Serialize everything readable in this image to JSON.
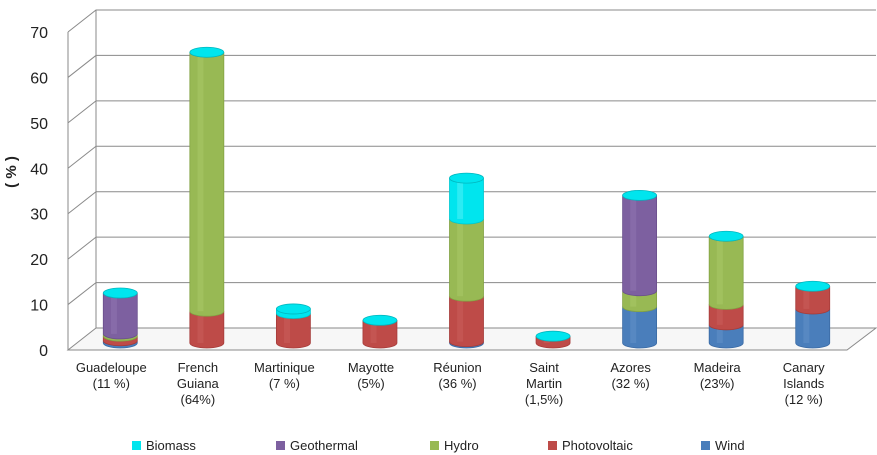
{
  "chart_data": {
    "type": "bar",
    "stacked": true,
    "three_d": true,
    "ylabel": "( % )",
    "ylim": [
      0,
      70
    ],
    "yticks": [
      "0",
      "10",
      "20",
      "30",
      "40",
      "50",
      "60",
      "70"
    ],
    "grid": true,
    "legend_position": "bottom",
    "categories": [
      [
        "Guadeloupe",
        "(11 %)"
      ],
      [
        "French",
        "Guiana",
        "(64%)"
      ],
      [
        "Martinique",
        "(7 %)"
      ],
      [
        "Mayotte",
        "(5%)"
      ],
      [
        "Réunion",
        "(36 %)"
      ],
      [
        "Saint",
        "Martin",
        "(1,5%)"
      ],
      [
        "Azores",
        "(32 %)"
      ],
      [
        "Madeira",
        "(23%)"
      ],
      [
        "Canary",
        "Islands",
        "(12 %)"
      ]
    ],
    "series": [
      {
        "name": "Wind",
        "color": "#4a7ebb",
        "values": [
          0.5,
          0,
          0,
          0,
          0.3,
          0,
          8,
          4,
          7.5
        ]
      },
      {
        "name": "Photovoltaic",
        "color": "#be4b48",
        "values": [
          1,
          7,
          6.5,
          5,
          10,
          1.5,
          0,
          4.5,
          5
        ]
      },
      {
        "name": "Hydro",
        "color": "#98b954",
        "values": [
          0.5,
          57,
          0,
          0,
          17,
          0,
          3.5,
          15,
          0
        ]
      },
      {
        "name": "Geothermal",
        "color": "#7d60a0",
        "values": [
          9,
          0,
          0,
          0,
          0,
          0,
          21,
          0,
          0
        ]
      },
      {
        "name": "Biomass",
        "color": "#00e5ee",
        "values": [
          0,
          0,
          1,
          0,
          9,
          0,
          0,
          0,
          0
        ]
      }
    ],
    "legend_order": [
      "Biomass",
      "Geothermal",
      "Hydro",
      "Photovoltaic",
      "Wind"
    ]
  }
}
